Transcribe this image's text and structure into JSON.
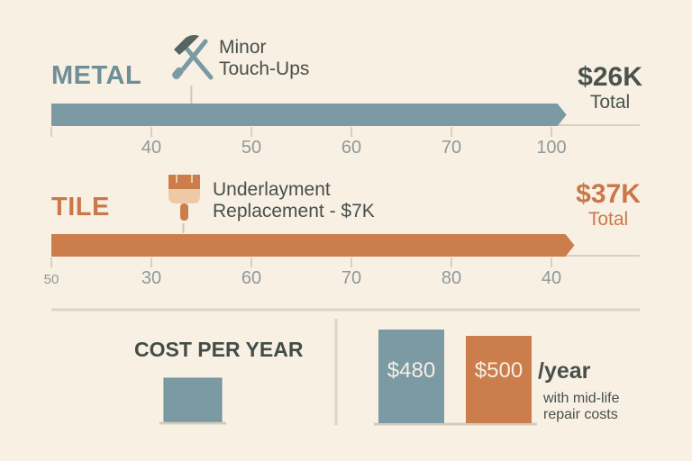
{
  "chart_data": {
    "type": "bar",
    "timelines": [
      {
        "name": "METAL",
        "color": "#7b9aa3",
        "tick_labels": [
          "40",
          "50",
          "60",
          "70",
          "100"
        ],
        "bar_extent_ticks": 5.15,
        "event": {
          "label_line1": "Minor",
          "label_line2": "Touch-Ups",
          "icon": "hammer-screwdriver-icon",
          "at_tick": 1.4
        },
        "total": {
          "value": "$26K",
          "caption": "Total"
        }
      },
      {
        "name": "TILE",
        "color": "#cc7d4c",
        "tick_labels": [
          "50",
          "30",
          "60",
          "70",
          "80",
          "40"
        ],
        "bar_extent_ticks": 5.23,
        "event": {
          "label_line1": "Underlayment",
          "label_line2": "Replacement - $7K",
          "icon": "paint-brush-icon",
          "at_tick": 1.32
        },
        "total": {
          "value": "$37K",
          "caption": "Total"
        }
      }
    ],
    "cost_per_year": {
      "title": "COST PER YEAR",
      "unit": "/year",
      "note_line1": "with mid-life",
      "note_line2": "repair costs",
      "series": [
        {
          "name": "METAL",
          "value": 480,
          "label": "$480",
          "color": "#7b9aa3"
        },
        {
          "name": "TILE",
          "value": 500,
          "label": "$500",
          "color": "#cc7d4c"
        }
      ]
    }
  },
  "colors": {
    "background": "#f9f0e4",
    "axis": "#d8d1c3",
    "text_dark": "#474f4a",
    "metal_total": "#4a534e",
    "tile_total": "#c9784a"
  }
}
